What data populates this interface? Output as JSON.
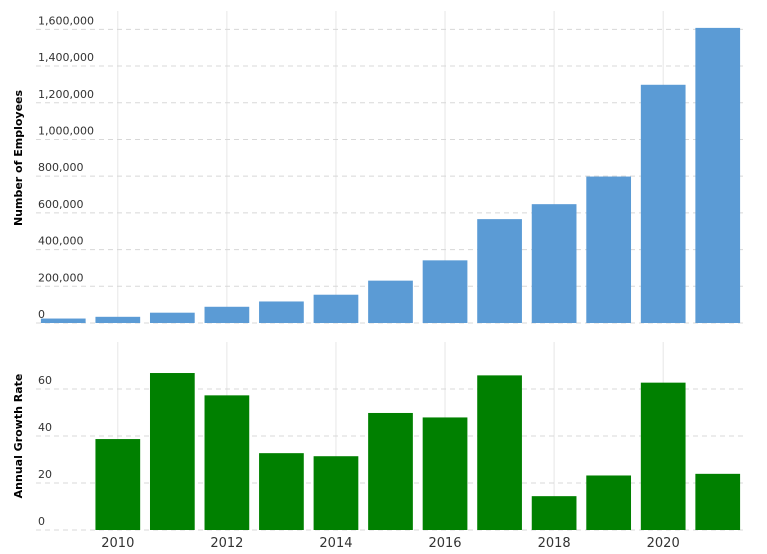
{
  "chart_data": [
    {
      "type": "bar",
      "y_label": "Number of Employees",
      "color": "#5b9bd5",
      "x": [
        2009,
        2010,
        2011,
        2012,
        2013,
        2014,
        2015,
        2016,
        2017,
        2018,
        2019,
        2020,
        2021
      ],
      "values": [
        24300,
        33700,
        56200,
        88400,
        117300,
        154100,
        230800,
        341400,
        566000,
        647500,
        798000,
        1298000,
        1608000
      ],
      "xlim": [
        2008.5,
        2021.5
      ],
      "ylim": [
        0,
        1700000
      ],
      "yticks": [
        0,
        {
          "value": 200000,
          "label": "200,000"
        },
        {
          "value": 400000,
          "label": "400,000"
        },
        {
          "value": 600000,
          "label": "600,000"
        },
        {
          "value": 800000,
          "label": "800,000"
        },
        {
          "value": 1000000,
          "label": "1,000,000"
        },
        {
          "value": 1200000,
          "label": "1,200,000"
        },
        {
          "value": 1400000,
          "label": "1,400,000"
        },
        {
          "value": 1600000,
          "label": "1,600,000"
        }
      ],
      "grid": true
    },
    {
      "type": "bar",
      "y_label": "Annual Growth Rate",
      "color": "#008000",
      "x": [
        2009,
        2010,
        2011,
        2012,
        2013,
        2014,
        2015,
        2016,
        2017,
        2018,
        2019,
        2020,
        2021
      ],
      "values": [
        null,
        38.7,
        66.8,
        57.3,
        32.7,
        31.4,
        49.8,
        47.9,
        65.8,
        14.4,
        23.2,
        62.7,
        23.9
      ],
      "xlim": [
        2008.5,
        2021.5
      ],
      "ylim": [
        0,
        80
      ],
      "xticks": [
        2010,
        2012,
        2014,
        2016,
        2018,
        2020
      ],
      "yticks": [
        0,
        20,
        40,
        60
      ],
      "grid": true
    }
  ]
}
